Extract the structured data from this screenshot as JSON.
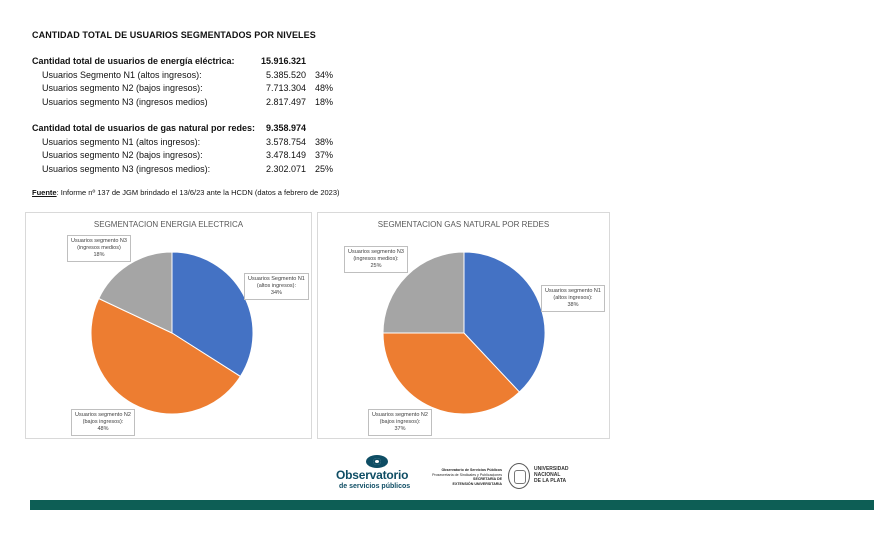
{
  "title": "CANTIDAD TOTAL DE USUARIOS SEGMENTADOS POR NIVELES",
  "electricity": {
    "total_label": "Cantidad total de usuarios de energía eléctrica:",
    "total_value": "15.916.321",
    "rows": [
      {
        "label": "Usuarios Segmento N1 (altos ingresos):",
        "value": "5.385.520",
        "pct": "34%"
      },
      {
        "label": "Usuarios segmento N2 (bajos ingresos):",
        "value": "7.713.304",
        "pct": "48%"
      },
      {
        "label": "Usuarios segmento N3 (ingresos medios)",
        "value": "2.817.497",
        "pct": "18%"
      }
    ]
  },
  "gas": {
    "total_label": "Cantidad total de usuarios de gas natural por redes:",
    "total_value": "9.358.974",
    "rows": [
      {
        "label": "Usuarios segmento N1 (altos ingresos):",
        "value": "3.578.754",
        "pct": "38%"
      },
      {
        "label": "Usuarios segmento N2 (bajos ingresos):",
        "value": "3.478.149",
        "pct": "37%"
      },
      {
        "label": "Usuarios segmento N3 (ingresos medios):",
        "value": "2.302.071",
        "pct": "25%"
      }
    ]
  },
  "source": {
    "label": "Fuente",
    "text": ": Informe nº 137 de JGM brindado el 13/6/23 ante la HCDN (datos a febrero de 2023)"
  },
  "colors": {
    "n1": "#4472c4",
    "n2": "#ed7d31",
    "n3": "#a5a5a5",
    "footer_bar": "#0d5e55"
  },
  "chart_data": [
    {
      "type": "pie",
      "title": "SEGMENTACION ENERGIA ELECTRICA",
      "categories": [
        "Usuarios Segmento N1 (altos ingresos):",
        "Usuarios segmento N2 (bajos ingresos):",
        "Usuarios segmento N3 (ingresos medios)"
      ],
      "values": [
        34,
        48,
        18
      ],
      "labels": [
        {
          "l1": "Usuarios Segmento N1",
          "l2": "(altos ingresos):",
          "pct": "34%"
        },
        {
          "l1": "Usuarios segmento N2",
          "l2": "(bajos ingresos):",
          "pct": "48%"
        },
        {
          "l1": "Usuarios segmento N3",
          "l2": "(ingresos medios)",
          "pct": "18%"
        }
      ]
    },
    {
      "type": "pie",
      "title": "SEGMENTACION GAS NATURAL POR REDES",
      "categories": [
        "Usuarios segmento N1 (altos ingresos):",
        "Usuarios segmento N2 (bajos ingresos):",
        "Usuarios segmento N3 (ingresos medios):"
      ],
      "values": [
        38,
        37,
        25
      ],
      "labels": [
        {
          "l1": "Usuarios segmento N1",
          "l2": "(altos ingresos):",
          "pct": "38%"
        },
        {
          "l1": "Usuarios segmento N2",
          "l2": "(bajos ingresos):",
          "pct": "37%"
        },
        {
          "l1": "Usuarios segmento N3",
          "l2": "(ingresos medios):",
          "pct": "25%"
        }
      ]
    }
  ],
  "footer": {
    "logo_title": "Observatorio",
    "logo_sub": "de servicios públicos",
    "mid_line1": "Observatorio de Servicios Públicos",
    "mid_line2": "Prosecretaría de Sindicales y Publicaciones",
    "mid_line3": "SECRETARÍA DE",
    "mid_line4": "EXTENSIÓN UNIVERSITARIA",
    "unlp_line1": "UNIVERSIDAD",
    "unlp_line2": "NACIONAL",
    "unlp_line3": "DE LA PLATA"
  }
}
